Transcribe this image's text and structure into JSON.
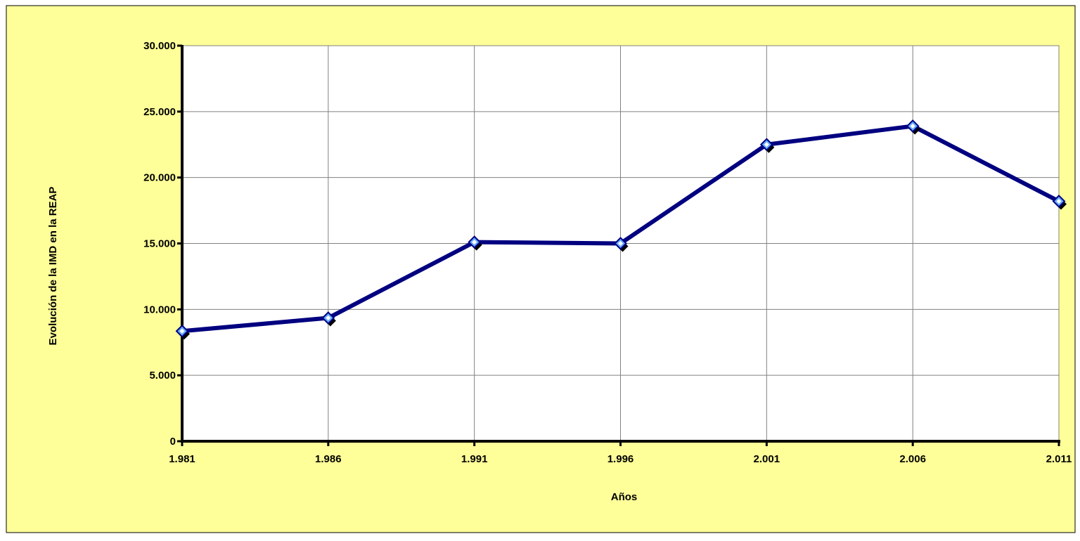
{
  "colors": {
    "chart_background": "#ffff99",
    "plot_background": "#ffffff",
    "line": "#000080",
    "marker_fill": "#66aaff",
    "marker_shadow": "#000000",
    "grid": "#808080",
    "axis": "#000000"
  },
  "chart_data": {
    "type": "line",
    "title": "",
    "xlabel": "Años",
    "ylabel": "Evolución de la IMD en la REAP",
    "categories": [
      "1.981",
      "1.986",
      "1.991",
      "1.996",
      "2.001",
      "2.006",
      "2.011"
    ],
    "values": [
      8350,
      9350,
      15100,
      15000,
      22500,
      23900,
      18200
    ],
    "ylim": [
      0,
      30000
    ],
    "yticks": [
      {
        "value": 0,
        "label": "0"
      },
      {
        "value": 5000,
        "label": "5.000"
      },
      {
        "value": 10000,
        "label": "10.000"
      },
      {
        "value": 15000,
        "label": "15.000"
      },
      {
        "value": 20000,
        "label": "20.000"
      },
      {
        "value": 25000,
        "label": "25.000"
      },
      {
        "value": 30000,
        "label": "30.000"
      }
    ],
    "grid": true,
    "legend": "none",
    "marker": "diamond"
  }
}
